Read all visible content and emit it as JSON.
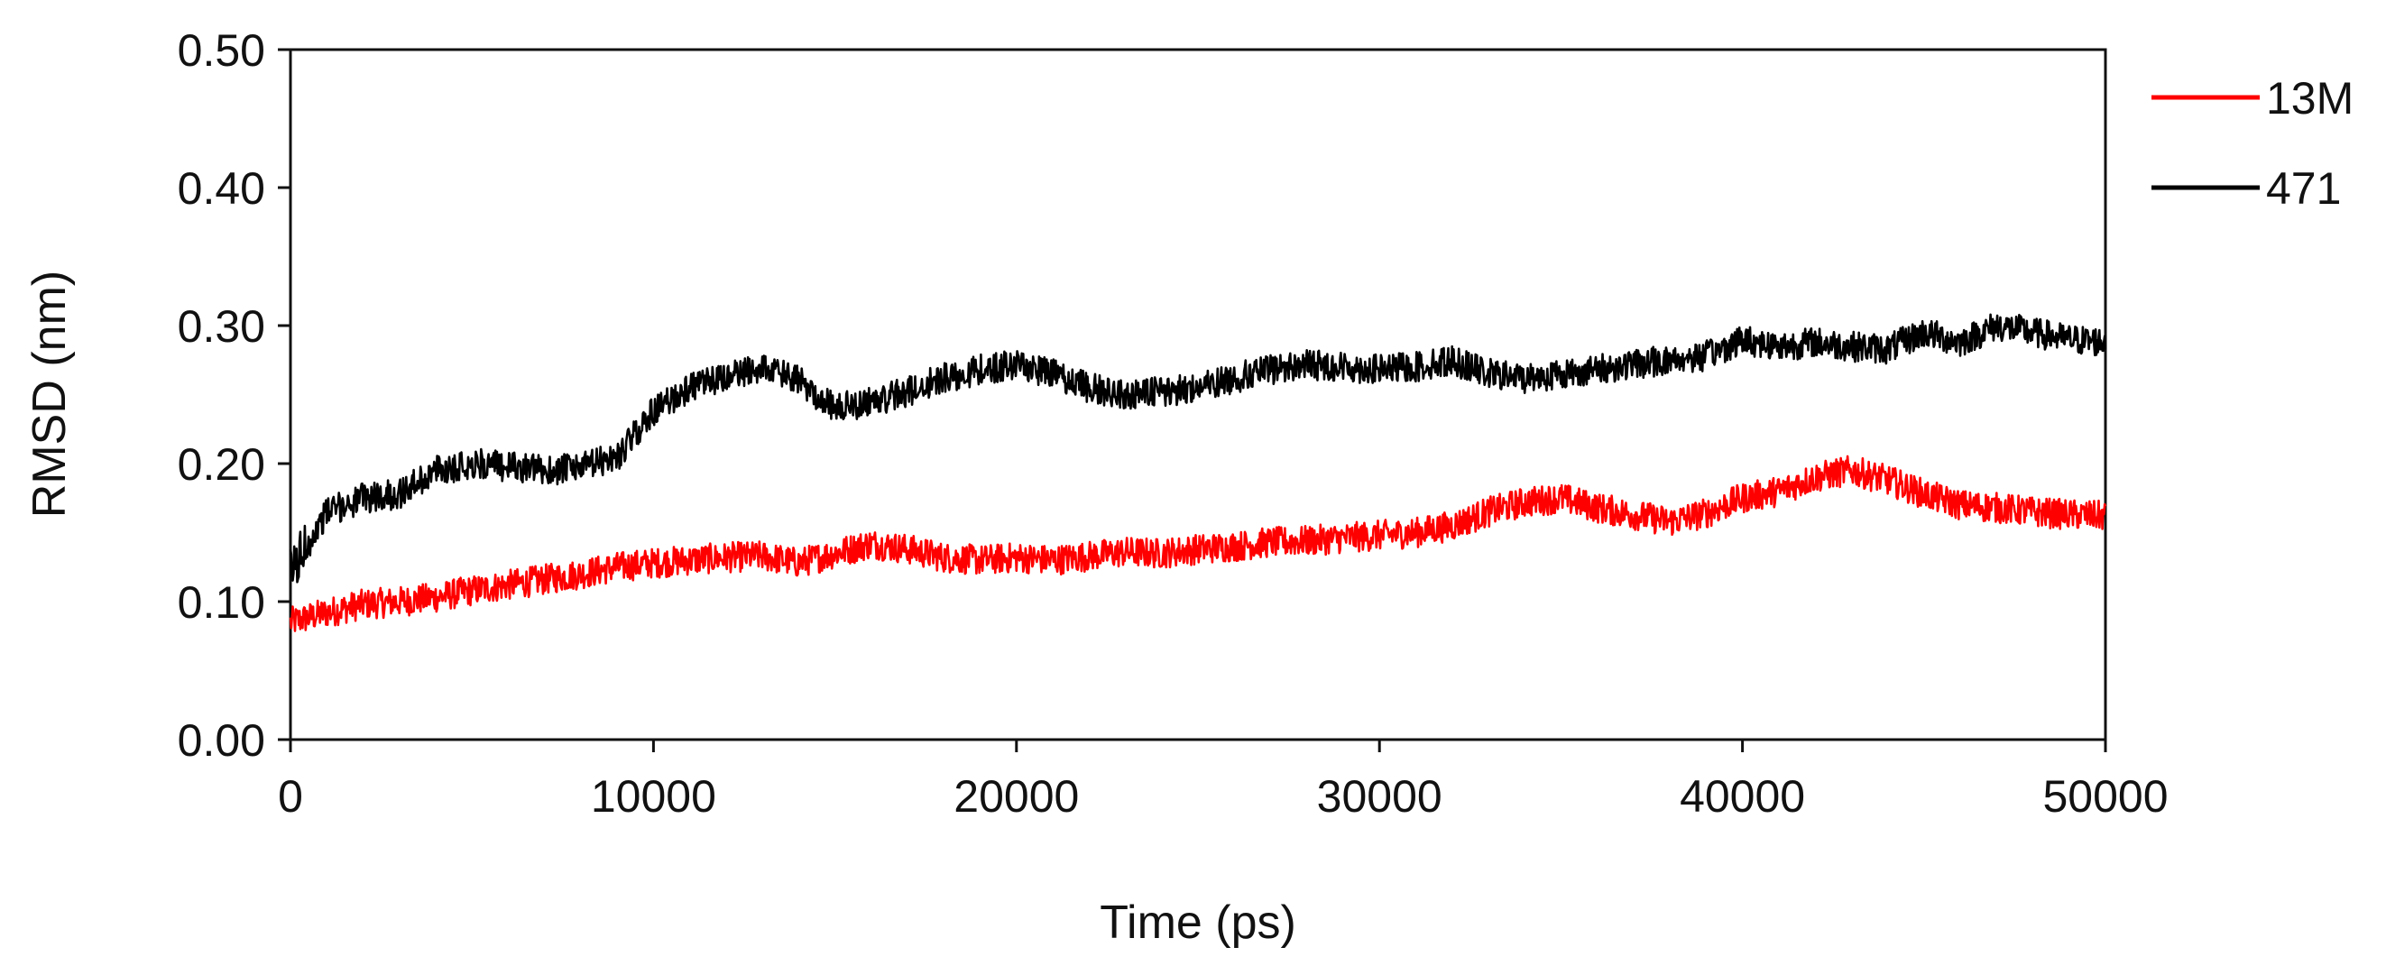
{
  "chart_data": {
    "type": "line",
    "xlabel": "Time (ps)",
    "ylabel": "RMSD (nm)",
    "xlim": [
      0,
      50000
    ],
    "ylim": [
      0.0,
      0.5
    ],
    "x_ticks": [
      "0",
      "10000",
      "20000",
      "30000",
      "40000",
      "50000"
    ],
    "y_ticks": [
      "0.00",
      "0.10",
      "0.20",
      "0.30",
      "0.40",
      "0.50"
    ],
    "grid": false,
    "legend_position": "top-right, outside plot",
    "x": [
      0,
      1000,
      2000,
      3000,
      4000,
      5000,
      6000,
      7000,
      8000,
      9000,
      10000,
      11000,
      12000,
      13000,
      14000,
      15000,
      16000,
      17000,
      18000,
      19000,
      20000,
      21000,
      22000,
      23000,
      24000,
      25000,
      26000,
      27000,
      28000,
      29000,
      30000,
      31000,
      32000,
      33000,
      34000,
      35000,
      36000,
      37000,
      38000,
      39000,
      40000,
      41000,
      42000,
      43000,
      44000,
      45000,
      46000,
      47000,
      48000,
      49000,
      50000
    ],
    "series": [
      {
        "name": "13M",
        "color": "#ff0000",
        "values": [
          0.085,
          0.092,
          0.098,
          0.1,
          0.103,
          0.108,
          0.112,
          0.116,
          0.12,
          0.125,
          0.128,
          0.13,
          0.132,
          0.133,
          0.128,
          0.135,
          0.142,
          0.138,
          0.132,
          0.13,
          0.132,
          0.13,
          0.133,
          0.136,
          0.135,
          0.138,
          0.14,
          0.143,
          0.144,
          0.146,
          0.148,
          0.15,
          0.155,
          0.165,
          0.172,
          0.175,
          0.168,
          0.163,
          0.158,
          0.164,
          0.175,
          0.18,
          0.19,
          0.195,
          0.188,
          0.178,
          0.17,
          0.168,
          0.165,
          0.163,
          0.162
        ]
      },
      {
        "name": "471",
        "color": "#000000",
        "values": [
          0.12,
          0.165,
          0.175,
          0.178,
          0.195,
          0.2,
          0.198,
          0.195,
          0.197,
          0.205,
          0.238,
          0.255,
          0.262,
          0.27,
          0.26,
          0.24,
          0.245,
          0.252,
          0.262,
          0.268,
          0.272,
          0.265,
          0.255,
          0.25,
          0.252,
          0.255,
          0.262,
          0.268,
          0.272,
          0.27,
          0.268,
          0.27,
          0.275,
          0.265,
          0.262,
          0.265,
          0.268,
          0.272,
          0.275,
          0.278,
          0.29,
          0.285,
          0.288,
          0.285,
          0.283,
          0.295,
          0.288,
          0.3,
          0.295,
          0.29,
          0.288
        ]
      }
    ]
  }
}
